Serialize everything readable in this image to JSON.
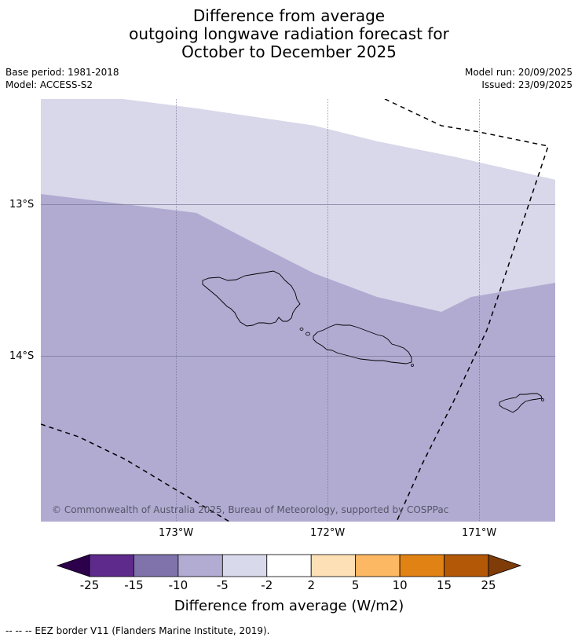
{
  "title": {
    "line1": "Difference from average",
    "line2": "outgoing longwave radiation forecast for",
    "line3": "October to December 2025"
  },
  "meta": {
    "base_period": "Base period: 1981-2018",
    "model": "Model: ACCESS-S2",
    "model_run": "Model run: 20/09/2025",
    "issued": "Issued: 23/09/2025"
  },
  "map": {
    "lat_labels": [
      "13°S",
      "14°S"
    ],
    "lon_labels": [
      "173°W",
      "172°W",
      "171°W"
    ],
    "copyright": "© Commonwealth of Australia 2025, Bureau of Meteorology, supported by COSPPac",
    "colors": {
      "light_band": "#d8d8ea",
      "mid_band": "#b1abd2",
      "white": "#ffffff"
    }
  },
  "colorbar": {
    "title": "Difference from average (W/m2)",
    "ticks": [
      "-25",
      "-15",
      "-10",
      "-5",
      "-2",
      "2",
      "5",
      "10",
      "15",
      "25"
    ],
    "colors": [
      "#2d004b",
      "#5e2a8c",
      "#8073ac",
      "#b2abd2",
      "#d8daeb",
      "#ffffff",
      "#fee0b6",
      "#fdb863",
      "#e08214",
      "#b35806",
      "#7f3b08"
    ]
  },
  "footnote": "--  --  -- EEZ border V11 (Flanders Marine Institute, 2019)."
}
